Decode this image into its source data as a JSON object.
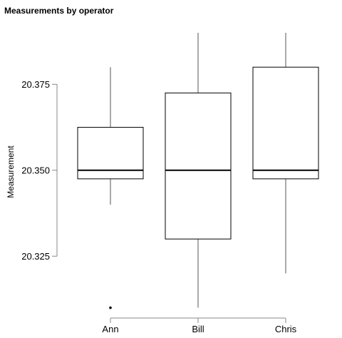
{
  "chart_data": {
    "type": "boxplot",
    "title": "Measurements by operator",
    "xlabel": "",
    "ylabel": "Measurement",
    "ylim": [
      20.307,
      20.39
    ],
    "yticks": [
      "20.325",
      "20.350",
      "20.375"
    ],
    "ytick_values": [
      20.325,
      20.35,
      20.375
    ],
    "grid": false,
    "colors": {
      "stroke": "#000000",
      "whisker": "#555555",
      "axis": "#888888"
    },
    "categories": [
      "Ann",
      "Bill",
      "Chris"
    ],
    "boxes": [
      {
        "category": "Ann",
        "whisker_low": 20.34,
        "q1": 20.3475,
        "median": 20.35,
        "q3": 20.3625,
        "whisker_high": 20.38,
        "outliers": [
          20.31
        ]
      },
      {
        "category": "Bill",
        "whisker_low": 20.31,
        "q1": 20.33,
        "median": 20.35,
        "q3": 20.3725,
        "whisker_high": 20.39,
        "outliers": []
      },
      {
        "category": "Chris",
        "whisker_low": 20.32,
        "q1": 20.3475,
        "median": 20.35,
        "q3": 20.38,
        "whisker_high": 20.39,
        "outliers": []
      }
    ]
  }
}
